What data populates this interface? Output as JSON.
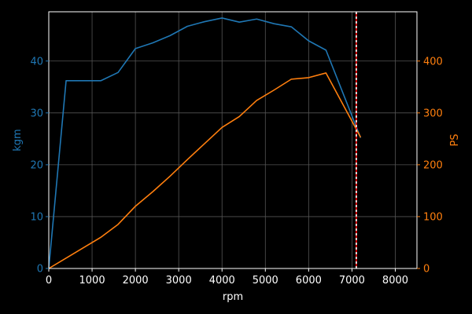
{
  "chart_data": {
    "type": "line",
    "background": "#000000",
    "grid": true,
    "xlabel": "rpm",
    "ylabel_left": "kgm",
    "ylabel_right": "PS",
    "xlim": [
      0,
      8500
    ],
    "ylim_left": [
      0,
      49.5
    ],
    "ylim_right": [
      0,
      495
    ],
    "xticks": [
      "0",
      "1000",
      "2000",
      "3000",
      "4000",
      "5000",
      "6000",
      "7000",
      "8000"
    ],
    "yticks_left": [
      "0",
      "10",
      "20",
      "30",
      "40"
    ],
    "yticks_right": [
      "0",
      "100",
      "200",
      "300",
      "400"
    ],
    "colors": {
      "torque": "#1f77b4",
      "power": "#ff7f0e",
      "axis": "#ffffff"
    },
    "series": [
      {
        "axis": "left",
        "color": "#1f77b4",
        "x": [
          0,
          400,
          800,
          1200,
          1600,
          2000,
          2400,
          2800,
          3200,
          3600,
          4000,
          4400,
          4800,
          5200,
          5600,
          6000,
          6400,
          7200
        ],
        "values": [
          0,
          36.2,
          36.2,
          36.2,
          37.8,
          42.4,
          43.5,
          44.9,
          46.7,
          47.6,
          48.3,
          47.5,
          48.1,
          47.2,
          46.6,
          43.9,
          42.1,
          25.2
        ]
      },
      {
        "axis": "right",
        "color": "#ff7f0e",
        "x": [
          0,
          400,
          800,
          1200,
          1600,
          2000,
          2400,
          2800,
          3200,
          3600,
          4000,
          4400,
          4800,
          5200,
          5600,
          6000,
          6400,
          7200
        ],
        "values": [
          0,
          20,
          40,
          60,
          85,
          120,
          148,
          178,
          210,
          241,
          272,
          293,
          324,
          344,
          365,
          368,
          377,
          253
        ]
      }
    ],
    "redline": {
      "x": 7100,
      "colors": [
        "#ff0000",
        "#ffffff"
      ]
    }
  }
}
